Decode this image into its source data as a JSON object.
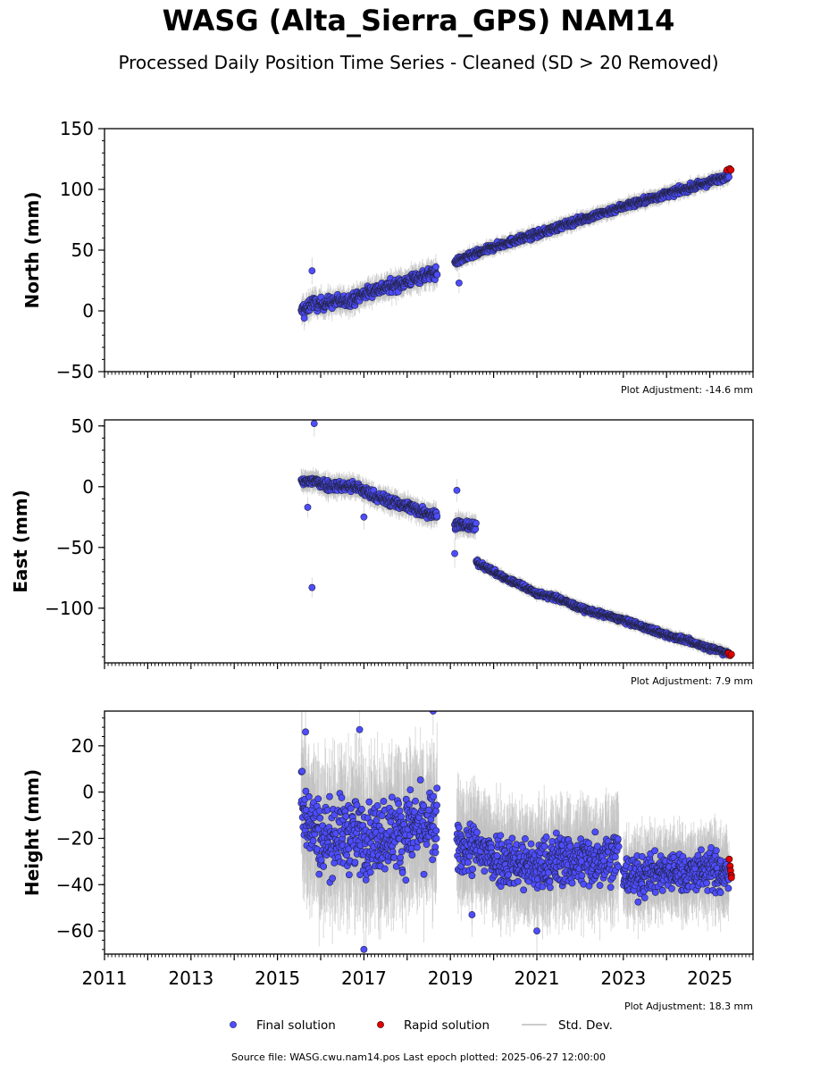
{
  "header": {
    "title": "WASG (Alta_Sierra_GPS) NAM14",
    "subtitle": "Processed Daily Position Time Series - Cleaned (SD > 20 Removed)"
  },
  "legend": {
    "final": "Final solution",
    "rapid": "Rapid solution",
    "std": "Std. Dev."
  },
  "footer": {
    "text": "Source file: WASG.cwu.nam14.pos  Last epoch plotted: 2025-06-27 12:00:00"
  },
  "colors": {
    "final": "#4d4dff",
    "rapid": "#e00000",
    "std": "#bbbbbb"
  },
  "chart_data": [
    {
      "type": "scatter",
      "ylabel": "North (mm)",
      "adjustment": "Plot Adjustment: -14.6 mm",
      "ylim": [
        -50,
        150
      ],
      "yticks": [
        -50,
        0,
        50,
        100,
        150
      ],
      "xlim": [
        2011.0,
        2026.0
      ],
      "xticks": [
        2011,
        2013,
        2015,
        2017,
        2019,
        2021,
        2023,
        2025
      ],
      "series": [
        {
          "name": "Final solution",
          "segments": [
            {
              "x": [
                2015.55,
                2015.6,
                2015.7,
                2015.8,
                2015.9,
                2016.2,
                2016.5,
                2016.8,
                2017.0,
                2017.3,
                2017.6,
                2017.9,
                2018.2,
                2018.5,
                2018.7
              ],
              "y": [
                -2,
                3,
                1,
                8,
                5,
                7,
                8,
                10,
                14,
                18,
                20,
                23,
                27,
                30,
                31
              ],
              "scatter": 3.5
            },
            {
              "x": [
                2019.1,
                2019.3,
                2019.6,
                2019.9,
                2020.2,
                2020.6,
                2021.0,
                2021.5,
                2022.0,
                2022.5,
                2023.0,
                2023.5,
                2024.0,
                2024.5,
                2025.0,
                2025.45
              ],
              "y": [
                40,
                43,
                47,
                51,
                55,
                59,
                63,
                69,
                75,
                80,
                86,
                91,
                96,
                101,
                106,
                112
              ],
              "scatter": 2
            }
          ],
          "outliers": [
            [
              2015.8,
              33
            ],
            [
              2015.62,
              -6
            ],
            [
              2019.2,
              23
            ]
          ]
        },
        {
          "name": "Rapid solution",
          "x": [
            2025.4,
            2025.46,
            2025.49
          ],
          "y": [
            116,
            117,
            116
          ]
        }
      ]
    },
    {
      "type": "scatter",
      "ylabel": "East (mm)",
      "adjustment": "Plot Adjustment: 7.9 mm",
      "ylim": [
        -145,
        55
      ],
      "yticks": [
        -100,
        -50,
        0,
        50
      ],
      "xlim": [
        2011.0,
        2026.0
      ],
      "xticks": [
        2011,
        2013,
        2015,
        2017,
        2019,
        2021,
        2023,
        2025
      ],
      "series": [
        {
          "name": "Final solution",
          "segments": [
            {
              "x": [
                2015.55,
                2015.8,
                2016.2,
                2016.8,
                2017.2,
                2017.6,
                2018.0,
                2018.4,
                2018.7
              ],
              "y": [
                3,
                5,
                1,
                0,
                -7,
                -12,
                -16,
                -21,
                -23
              ],
              "scatter": 3
            },
            {
              "x": [
                2019.1,
                2019.3,
                2019.6
              ],
              "y": [
                -30,
                -32,
                -33
              ],
              "scatter": 3
            },
            {
              "x": [
                2019.6,
                2019.9,
                2020.3,
                2020.7,
                2021.0,
                2021.5,
                2022.0,
                2022.5,
                2023.0,
                2023.5,
                2024.0,
                2024.5,
                2025.0,
                2025.45
              ],
              "y": [
                -62,
                -68,
                -76,
                -82,
                -88,
                -92,
                -100,
                -105,
                -110,
                -116,
                -122,
                -127,
                -133,
                -137
              ],
              "scatter": 1.5
            }
          ],
          "outliers": [
            [
              2015.85,
              52
            ],
            [
              2015.8,
              -83
            ],
            [
              2019.15,
              -3
            ],
            [
              2019.1,
              -55
            ],
            [
              2015.7,
              -17
            ],
            [
              2017.0,
              -25
            ]
          ]
        },
        {
          "name": "Rapid solution",
          "x": [
            2025.43,
            2025.47,
            2025.5
          ],
          "y": [
            -137,
            -139,
            -138
          ]
        }
      ]
    },
    {
      "type": "scatter",
      "ylabel": "Height (mm)",
      "adjustment": "Plot Adjustment: 18.3 mm",
      "ylim": [
        -70,
        35
      ],
      "yticks": [
        -60,
        -40,
        -20,
        0,
        20
      ],
      "xlim": [
        2011.0,
        2026.0
      ],
      "xticks": [
        2011,
        2013,
        2015,
        2017,
        2019,
        2021,
        2023,
        2025
      ],
      "tick_labels": [
        "2011",
        "2013",
        "2015",
        "2017",
        "2019",
        "2021",
        "2023",
        "2025"
      ],
      "series": [
        {
          "name": "Final solution",
          "segments": [
            {
              "x": [
                2015.55,
                2016.0,
                2016.5,
                2017.0,
                2017.5,
                2018.0,
                2018.7
              ],
              "y": [
                -5,
                -20,
                -18,
                -20,
                -18,
                -16,
                -15
              ],
              "scatter": 11
            },
            {
              "x": [
                2019.15,
                2019.5,
                2020.0,
                2020.5,
                2021.0,
                2021.5,
                2022.0,
                2022.5,
                2022.9
              ],
              "y": [
                -25,
                -24,
                -28,
                -30,
                -33,
                -29,
                -30,
                -28,
                -27
              ],
              "scatter": 8
            },
            {
              "x": [
                2023.0,
                2023.5,
                2024.0,
                2024.5,
                2025.0,
                2025.45
              ],
              "y": [
                -37,
                -36,
                -34,
                -35,
                -33,
                -37
              ],
              "scatter": 6
            }
          ],
          "outliers": [
            [
              2015.65,
              26
            ],
            [
              2016.9,
              27
            ],
            [
              2018.6,
              35
            ],
            [
              2017.0,
              -68
            ],
            [
              2021.0,
              -60
            ],
            [
              2019.5,
              -53
            ]
          ]
        },
        {
          "name": "Rapid solution",
          "x": [
            2025.45,
            2025.47,
            2025.48,
            2025.5,
            2025.5
          ],
          "y": [
            -29,
            -32,
            -34,
            -36,
            -37
          ]
        }
      ]
    }
  ]
}
